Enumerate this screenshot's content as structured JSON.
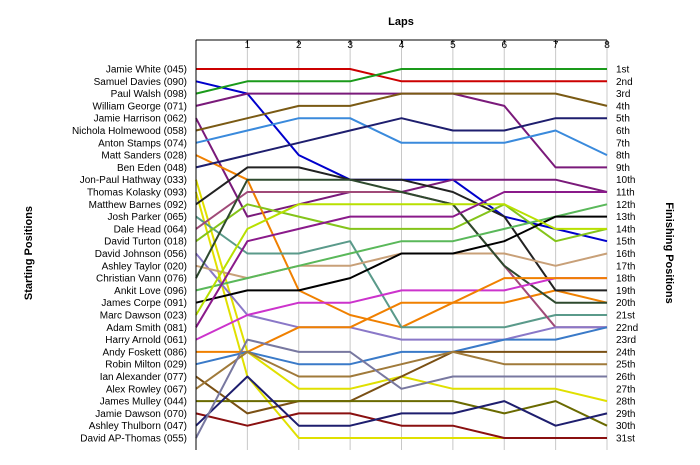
{
  "chart_data": {
    "type": "line",
    "title": "Laps",
    "ylabel_left": "Starting Positions",
    "ylabel_right": "Finishing Positions",
    "x": [
      0,
      1,
      2,
      3,
      4,
      5,
      6,
      7,
      8
    ],
    "x_tick_labels": [
      "1",
      "2",
      "3",
      "4",
      "5",
      "6",
      "7",
      "8"
    ],
    "finishing_positions": [
      "1st",
      "2nd",
      "3rd",
      "4th",
      "5th",
      "6th",
      "7th",
      "8th",
      "9th",
      "10th",
      "11th",
      "12th",
      "13th",
      "14th",
      "15th",
      "16th",
      "17th",
      "18th",
      "19th",
      "20th",
      "21st",
      "22nd",
      "23rd",
      "24th",
      "25th",
      "26th",
      "27th",
      "28th",
      "29th",
      "30th",
      "31st"
    ],
    "grid": true,
    "series": [
      {
        "name": "Jamie White (045)",
        "color": "#cc0000",
        "values": [
          1,
          1,
          1,
          1,
          2,
          2,
          2,
          2,
          2
        ]
      },
      {
        "name": "Samuel Davies (090)",
        "color": "#0000cc",
        "values": [
          2,
          3,
          8,
          10,
          10,
          10,
          13,
          14,
          15
        ]
      },
      {
        "name": "Paul Walsh (098)",
        "color": "#1a9a1a",
        "values": [
          3,
          2,
          2,
          2,
          1,
          1,
          1,
          1,
          1
        ]
      },
      {
        "name": "William George (071)",
        "color": "#7a1a7a",
        "values": [
          4,
          3,
          3,
          3,
          3,
          3,
          4,
          9,
          9
        ]
      },
      {
        "name": "Jamie Harrison (062)",
        "color": "#7a1a7a",
        "values": [
          5,
          13,
          12,
          11,
          11,
          10,
          10,
          10,
          11
        ]
      },
      {
        "name": "Nichola Holmewood (058)",
        "color": "#7a5a14",
        "values": [
          6,
          5,
          4,
          4,
          3,
          3,
          3,
          3,
          4
        ]
      },
      {
        "name": "Anton Stamps (074)",
        "color": "#3a8adc",
        "values": [
          7,
          6,
          5,
          5,
          7,
          7,
          7,
          6,
          8
        ]
      },
      {
        "name": "Matt Sanders (028)",
        "color": "#f08000",
        "values": [
          8,
          10,
          19,
          21,
          22,
          20,
          20,
          19,
          20
        ]
      },
      {
        "name": "Ben Eden (048)",
        "color": "#1e1e6e",
        "values": [
          9,
          8,
          7,
          6,
          5,
          6,
          6,
          5,
          5
        ]
      },
      {
        "name": "Jon-Paul Hathway (033)",
        "color": "#e0e000",
        "values": [
          10,
          24,
          27,
          27,
          26,
          27,
          27,
          27,
          28
        ]
      },
      {
        "name": "Thomas Kolasky (093)",
        "color": "#e0e000",
        "values": [
          11,
          26,
          31,
          31,
          31,
          31,
          31,
          31,
          31
        ]
      },
      {
        "name": "Matthew Barnes (092)",
        "color": "#222222",
        "values": [
          12,
          9,
          9,
          10,
          10,
          11,
          13,
          19,
          19
        ]
      },
      {
        "name": "Josh Parker (065)",
        "color": "#5a9a8a",
        "values": [
          13,
          16,
          16,
          15,
          22,
          22,
          22,
          21,
          21
        ]
      },
      {
        "name": "Dale Head (064)",
        "color": "#a04a78",
        "values": [
          14,
          11,
          11,
          11,
          11,
          12,
          17,
          22,
          22
        ]
      },
      {
        "name": "David Turton (018)",
        "color": "#84c41a",
        "values": [
          15,
          12,
          13,
          14,
          14,
          14,
          12,
          15,
          14
        ]
      },
      {
        "name": "David Johnson (056)",
        "color": "#8a78c8",
        "values": [
          16,
          21,
          22,
          22,
          23,
          23,
          23,
          22,
          22
        ]
      },
      {
        "name": "Ashley Taylor (020)",
        "color": "#c8a078",
        "values": [
          17,
          18,
          17,
          17,
          16,
          16,
          16,
          17,
          16
        ]
      },
      {
        "name": "Christian Vann (076)",
        "color": "#2e4a2e",
        "values": [
          18,
          10,
          10,
          10,
          11,
          12,
          17,
          20,
          20
        ]
      },
      {
        "name": "Ankit Love (096)",
        "color": "#5ab85a",
        "values": [
          19,
          18,
          17,
          16,
          15,
          15,
          14,
          13,
          12
        ]
      },
      {
        "name": "James Corpe (091)",
        "color": "#000000",
        "values": [
          20,
          19,
          19,
          18,
          16,
          16,
          15,
          13,
          13
        ]
      },
      {
        "name": "Marc Dawson (023)",
        "color": "#b8e000",
        "values": [
          21,
          14,
          12,
          12,
          12,
          12,
          12,
          14,
          14
        ]
      },
      {
        "name": "Adam Smith (081)",
        "color": "#8a1a8a",
        "values": [
          22,
          15,
          14,
          13,
          13,
          13,
          11,
          11,
          11
        ]
      },
      {
        "name": "Harry Arnold (061)",
        "color": "#cc33cc",
        "values": [
          23,
          21,
          20,
          20,
          19,
          19,
          19,
          18,
          18
        ]
      },
      {
        "name": "Andy Foskett (086)",
        "color": "#f08000",
        "values": [
          24,
          24,
          22,
          22,
          20,
          20,
          18,
          18,
          18
        ]
      },
      {
        "name": "Robin Milton (029)",
        "color": "#3a7ac8",
        "values": [
          25,
          24,
          25,
          25,
          24,
          24,
          23,
          23,
          22
        ]
      },
      {
        "name": "Ian Alexander (077)",
        "color": "#7a5014",
        "values": [
          26,
          29,
          28,
          28,
          26,
          24,
          24,
          24,
          24
        ]
      },
      {
        "name": "Alex Rowley (067)",
        "color": "#a07a3a",
        "values": [
          27,
          24,
          26,
          26,
          25,
          24,
          25,
          25,
          25
        ]
      },
      {
        "name": "James Mulley (044)",
        "color": "#6a6a00",
        "values": [
          28,
          28,
          28,
          28,
          28,
          28,
          29,
          28,
          30
        ]
      },
      {
        "name": "Jamie Dawson (070)",
        "color": "#8a1010",
        "values": [
          29,
          30,
          29,
          29,
          30,
          30,
          31,
          31,
          31
        ]
      },
      {
        "name": "Ashley Thulborn (047)",
        "color": "#1e1e6e",
        "values": [
          30,
          26,
          30,
          30,
          29,
          29,
          28,
          30,
          29
        ]
      },
      {
        "name": "David AP-Thomas (055)",
        "color": "#7878a0",
        "values": [
          31,
          23,
          24,
          24,
          27,
          26,
          26,
          26,
          26
        ]
      }
    ]
  }
}
